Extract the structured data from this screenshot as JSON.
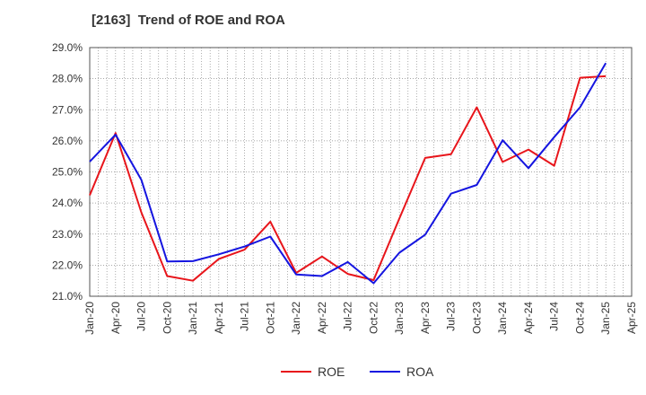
{
  "chart_data": {
    "type": "line",
    "title": "[2163]  Trend of ROE and ROA",
    "xlabel": "",
    "ylabel": "",
    "ylim": [
      21.0,
      29.0
    ],
    "yticks": [
      "21.0%",
      "22.0%",
      "23.0%",
      "24.0%",
      "25.0%",
      "26.0%",
      "27.0%",
      "28.0%",
      "29.0%"
    ],
    "xticks": [
      "Jan-20",
      "Apr-20",
      "Jul-20",
      "Oct-20",
      "Jan-21",
      "Apr-21",
      "Jul-21",
      "Oct-21",
      "Jan-22",
      "Apr-22",
      "Jul-22",
      "Oct-22",
      "Jan-23",
      "Apr-23",
      "Jul-23",
      "Oct-23",
      "Jan-24",
      "Apr-24",
      "Jul-24",
      "Oct-24",
      "Jan-25",
      "Apr-25"
    ],
    "grid": true,
    "legend_position": "bottom",
    "series": [
      {
        "name": "ROE",
        "color": "#e8151b",
        "x": [
          "Jan-20",
          "Apr-20",
          "Jul-20",
          "Oct-20",
          "Jan-21",
          "Apr-21",
          "Jul-21",
          "Oct-21",
          "Jan-22",
          "Apr-22",
          "Jul-22",
          "Oct-22",
          "Jan-23",
          "Apr-23",
          "Jul-23",
          "Oct-23",
          "Jan-24",
          "Apr-24",
          "Jul-24",
          "Oct-24",
          "Jan-25"
        ],
        "values": [
          24.25,
          26.25,
          23.7,
          21.65,
          21.5,
          22.2,
          22.5,
          23.4,
          21.75,
          22.28,
          21.72,
          21.52,
          23.5,
          25.45,
          25.57,
          27.08,
          25.32,
          25.72,
          25.2,
          28.03,
          28.08
        ]
      },
      {
        "name": "ROA",
        "color": "#1515e0",
        "x": [
          "Jan-20",
          "Apr-20",
          "Jul-20",
          "Oct-20",
          "Jan-21",
          "Apr-21",
          "Jul-21",
          "Oct-21",
          "Jan-22",
          "Apr-22",
          "Jul-22",
          "Oct-22",
          "Jan-23",
          "Apr-23",
          "Jul-23",
          "Oct-23",
          "Jan-24",
          "Apr-24",
          "Jul-24",
          "Oct-24",
          "Jan-25"
        ],
        "values": [
          25.33,
          26.2,
          24.75,
          22.12,
          22.13,
          22.35,
          22.6,
          22.92,
          21.7,
          21.65,
          22.1,
          21.42,
          22.4,
          22.98,
          24.3,
          24.58,
          26.02,
          25.12,
          26.12,
          27.08,
          28.5
        ]
      }
    ]
  }
}
